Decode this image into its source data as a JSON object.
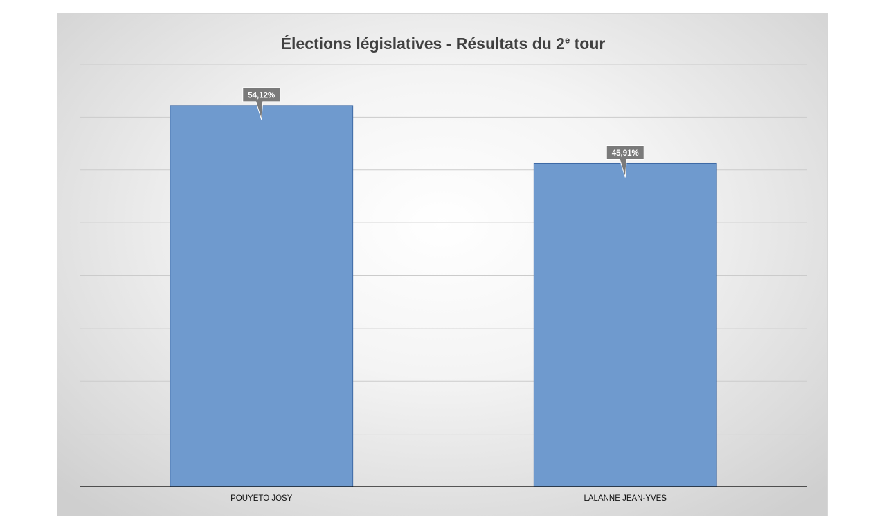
{
  "chart_data": {
    "type": "bar",
    "title_main": "Élections législatives - Résultats du 2",
    "title_sup": "e",
    "title_tail": " tour",
    "xlabel": "",
    "ylabel": "",
    "categories": [
      "POUYETO JOSY",
      "LALANNE JEAN-YVES"
    ],
    "values": [
      54.12,
      45.91
    ],
    "data_labels": [
      "54,12%",
      "45,91%"
    ],
    "ylim": [
      0,
      60
    ],
    "grid": true,
    "legend": "none",
    "bar_color": "#6f9ace",
    "bar_edge_color": "#3e6aa6",
    "label_box_color": "#7a7a7a"
  }
}
